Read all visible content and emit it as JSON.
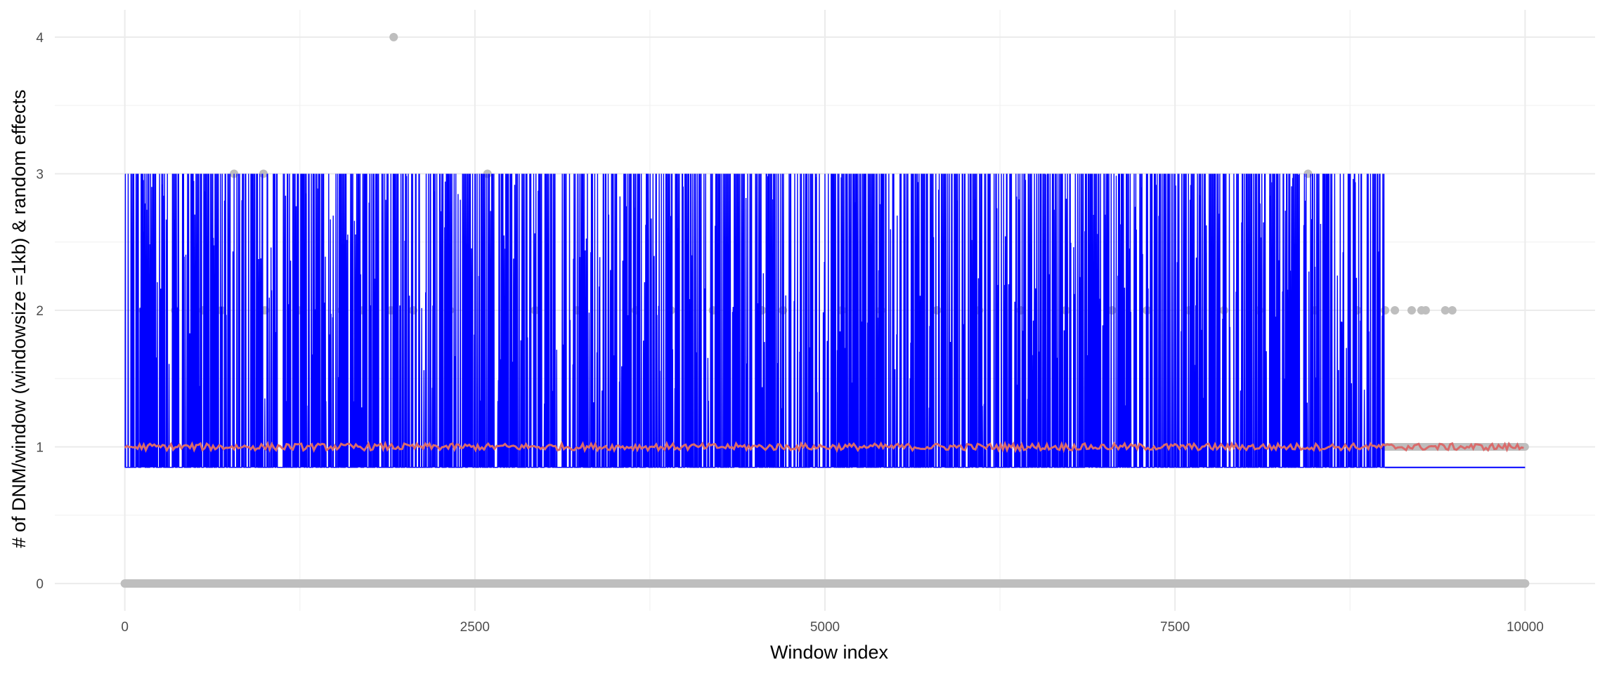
{
  "chart_data": {
    "type": "scatter",
    "title": "",
    "xlabel": "Window index",
    "ylabel": "# of DNM/window (windowsize =1kb) & random effects",
    "xlim": [
      -500,
      10500
    ],
    "ylim": [
      -0.2,
      4.2
    ],
    "x_ticks": [
      0,
      2500,
      5000,
      7500,
      10000
    ],
    "x_tick_labels": [
      "0",
      "2500",
      "5000",
      "7500",
      "10000"
    ],
    "y_ticks": [
      0,
      1,
      2,
      3,
      4
    ],
    "y_tick_labels": [
      "0",
      "1",
      "2",
      "3",
      "4"
    ],
    "grid": true,
    "legend": "none",
    "series": [
      {
        "kind": "points",
        "color": "#bebebe",
        "points": [
          {
            "x": 1920,
            "y": 4
          },
          {
            "x": 780,
            "y": 3
          },
          {
            "x": 990,
            "y": 3
          },
          {
            "x": 2590,
            "y": 3
          },
          {
            "x": 8450,
            "y": 3
          },
          {
            "x": 130,
            "y": 2
          },
          {
            "x": 360,
            "y": 2
          },
          {
            "x": 560,
            "y": 2
          },
          {
            "x": 690,
            "y": 2
          },
          {
            "x": 1000,
            "y": 2
          },
          {
            "x": 1240,
            "y": 2
          },
          {
            "x": 1550,
            "y": 2
          },
          {
            "x": 1700,
            "y": 2
          },
          {
            "x": 1900,
            "y": 2
          },
          {
            "x": 2060,
            "y": 2
          },
          {
            "x": 2320,
            "y": 2
          },
          {
            "x": 2930,
            "y": 2
          },
          {
            "x": 3230,
            "y": 2
          },
          {
            "x": 3650,
            "y": 2
          },
          {
            "x": 3900,
            "y": 2
          },
          {
            "x": 4200,
            "y": 2
          },
          {
            "x": 4550,
            "y": 2
          },
          {
            "x": 4700,
            "y": 2
          },
          {
            "x": 5120,
            "y": 2
          },
          {
            "x": 5400,
            "y": 2
          },
          {
            "x": 5800,
            "y": 2
          },
          {
            "x": 6100,
            "y": 2
          },
          {
            "x": 6400,
            "y": 2
          },
          {
            "x": 6720,
            "y": 2
          },
          {
            "x": 7050,
            "y": 2
          },
          {
            "x": 7300,
            "y": 2
          },
          {
            "x": 7600,
            "y": 2
          },
          {
            "x": 7850,
            "y": 2
          },
          {
            "x": 8100,
            "y": 2
          },
          {
            "x": 8500,
            "y": 2
          },
          {
            "x": 8800,
            "y": 2
          },
          {
            "x": 9000,
            "y": 2
          },
          {
            "x": 9070,
            "y": 2
          },
          {
            "x": 9190,
            "y": 2
          },
          {
            "x": 9260,
            "y": 2
          },
          {
            "x": 9290,
            "y": 2
          },
          {
            "x": 9430,
            "y": 2
          },
          {
            "x": 9480,
            "y": 2
          }
        ],
        "band_y0": {
          "from": 0,
          "to": 10000,
          "y": 0
        },
        "band_y1": {
          "from": 9000,
          "to": 10000,
          "y": 1
        }
      },
      {
        "kind": "line",
        "color": "#0000ff",
        "x_range": [
          0,
          10000
        ],
        "baseline": 0.85,
        "peak_max": 3,
        "active_until": 9000
      },
      {
        "kind": "line",
        "color": "#d96b6b",
        "x_range": [
          0,
          10000
        ],
        "level": 1.0
      }
    ]
  }
}
